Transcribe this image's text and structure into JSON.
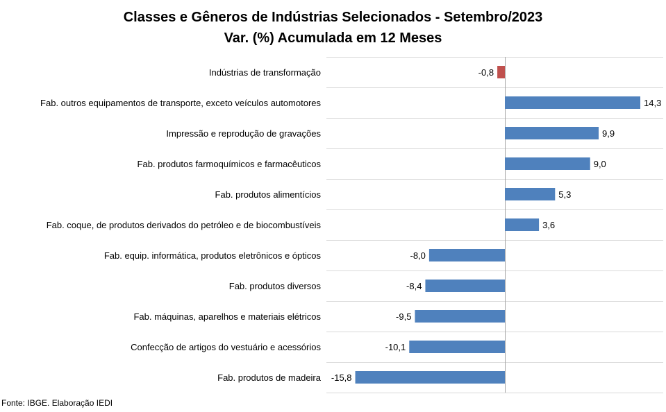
{
  "chart_data": {
    "type": "bar",
    "orientation": "horizontal",
    "title": "Classes e Gêneros de Indústrias Selecionados - Setembro/2023",
    "subtitle": "Var. (%) Acumulada em 12 Meses",
    "categories": [
      "Indústrias de transformação",
      "Fab. outros equipamentos de transporte, exceto veículos automotores",
      "Impressão e reprodução de gravações",
      "Fab. produtos farmoquímicos e farmacêuticos",
      "Fab. produtos alimentícios",
      "Fab. coque, de produtos derivados do petróleo e de biocombustíveis",
      "Fab. equip. informática, produtos eletrônicos e ópticos",
      "Fab. produtos diversos",
      "Fab. máquinas, aparelhos e materiais elétricos",
      "Confecção de artigos do vestuário e acessórios",
      "Fab. produtos de madeira"
    ],
    "values": [
      -0.8,
      14.3,
      9.9,
      9.0,
      5.3,
      3.6,
      -8.0,
      -8.4,
      -9.5,
      -10.1,
      -15.8
    ],
    "labels": [
      "-0,8",
      "14,3",
      "9,9",
      "9,0",
      "5,3",
      "3,6",
      "-8,0",
      "-8,4",
      "-9,5",
      "-10,1",
      "-15,8"
    ],
    "colors": [
      "#c0504d",
      "#4f81bd",
      "#4f81bd",
      "#4f81bd",
      "#4f81bd",
      "#4f81bd",
      "#4f81bd",
      "#4f81bd",
      "#4f81bd",
      "#4f81bd",
      "#4f81bd"
    ],
    "xlim": [
      -16.5,
      17.0
    ],
    "grid": "horizontal separators"
  },
  "footer": "Fonte: IBGE. Elaboração IEDI"
}
